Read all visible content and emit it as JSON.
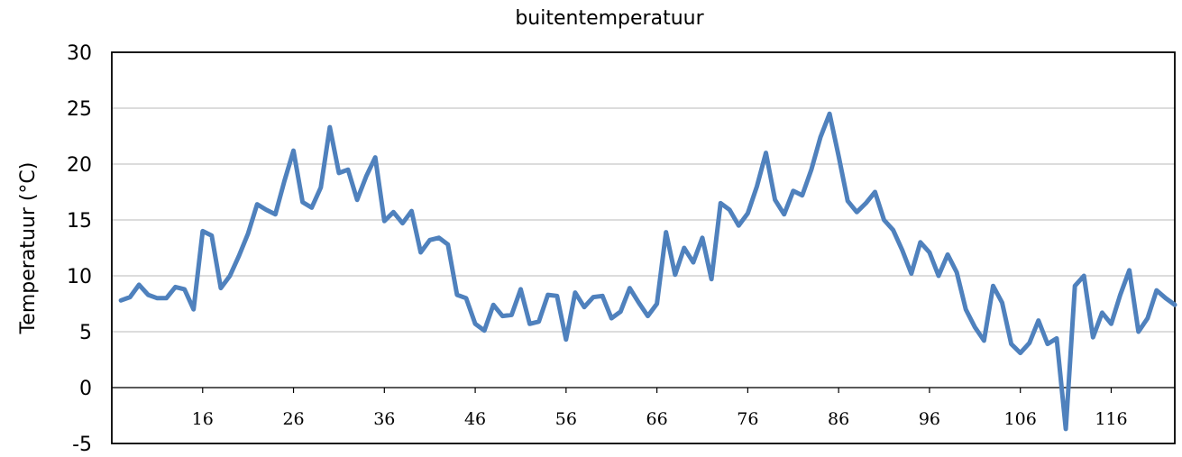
{
  "chart_data": {
    "type": "line",
    "title": "buitentemperatuur",
    "xlabel": "",
    "ylabel": "Temperatuur (°C)",
    "ylim": [
      -5,
      30
    ],
    "yticks": [
      30,
      25,
      20,
      15,
      10,
      5,
      0,
      -5
    ],
    "xticks": [
      16,
      26,
      36,
      46,
      56,
      66,
      76,
      86,
      96,
      106,
      116
    ],
    "xlim": [
      6,
      123
    ],
    "grid": "horizontal",
    "color": "#4f81bd",
    "series": [
      {
        "x": [
          7,
          8,
          9,
          10,
          11,
          12,
          13,
          14,
          15,
          16,
          17,
          18,
          19,
          20,
          21,
          22,
          23,
          24,
          25,
          26,
          27,
          28,
          29,
          30,
          31,
          32,
          33,
          34,
          35,
          36,
          37,
          38,
          39,
          40,
          41,
          42,
          43,
          44,
          45,
          46,
          47,
          48,
          49,
          50,
          51,
          52,
          53,
          54,
          55,
          56,
          57,
          58,
          59,
          60,
          61,
          62,
          63,
          64,
          65,
          66,
          67,
          68,
          69,
          70,
          71,
          72,
          73,
          74,
          75,
          76,
          77,
          78,
          79,
          80,
          81,
          82,
          83,
          84,
          85,
          86,
          87,
          88,
          89,
          90,
          91,
          92,
          93,
          94,
          95,
          96,
          97,
          98,
          99,
          100,
          101,
          102,
          103,
          104,
          105,
          106,
          107,
          108,
          109,
          110,
          111,
          112,
          113,
          114,
          115,
          116,
          117,
          118,
          119,
          120,
          121,
          122,
          123
        ],
        "values": [
          7.8,
          8.1,
          9.2,
          8.3,
          8.0,
          8.0,
          9.0,
          8.8,
          7.0,
          14.0,
          13.6,
          8.9,
          10.0,
          11.8,
          13.8,
          16.4,
          15.9,
          15.5,
          18.5,
          21.2,
          16.6,
          16.1,
          17.9,
          23.3,
          19.2,
          19.5,
          16.8,
          18.9,
          20.6,
          14.9,
          15.7,
          14.7,
          15.8,
          12.1,
          13.2,
          13.4,
          12.8,
          8.3,
          8.0,
          5.7,
          5.1,
          7.4,
          6.4,
          6.5,
          8.8,
          5.7,
          5.9,
          8.3,
          8.2,
          4.3,
          8.5,
          7.2,
          8.1,
          8.2,
          6.2,
          6.8,
          8.9,
          7.6,
          6.4,
          7.5,
          13.9,
          10.1,
          12.5,
          11.2,
          13.4,
          9.7,
          16.5,
          15.9,
          14.5,
          15.6,
          18.0,
          21.0,
          16.8,
          15.5,
          17.6,
          17.2,
          19.5,
          22.4,
          24.5,
          20.7,
          16.7,
          15.7,
          16.5,
          17.5,
          15.0,
          14.1,
          12.3,
          10.2,
          13.0,
          12.1,
          10.0,
          11.9,
          10.3,
          7.0,
          5.4,
          4.2,
          9.1,
          7.6,
          3.9,
          3.1,
          4.0,
          6.0,
          3.9,
          4.4,
          -3.7,
          9.1,
          10.0,
          4.5,
          6.7,
          5.7,
          8.3,
          10.5,
          5.0,
          6.2,
          8.7,
          8.0,
          7.4
        ]
      }
    ]
  }
}
